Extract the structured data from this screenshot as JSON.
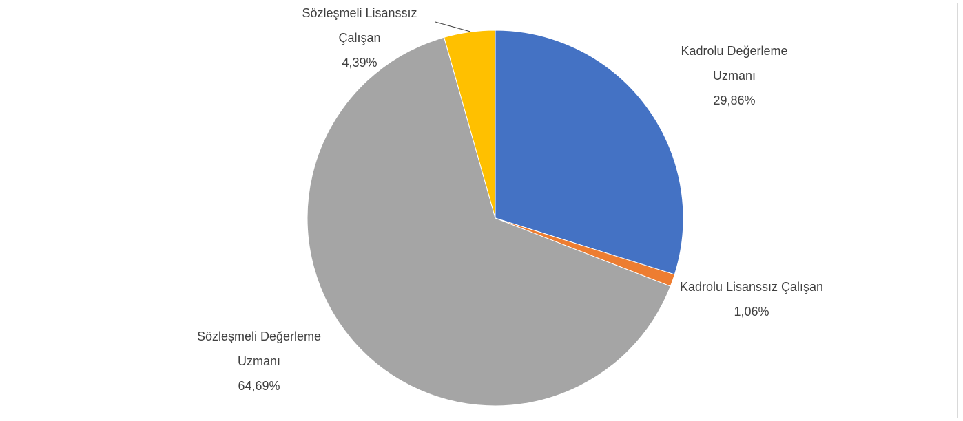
{
  "chart_data": {
    "type": "pie",
    "categories": [
      "Kadrolu Değerleme Uzmanı",
      "Kadrolu Lisanssız Çalışan",
      "Sözleşmeli Değerleme Uzmanı",
      "Sözleşmeli Lisanssız Çalışan"
    ],
    "values": [
      29.86,
      1.06,
      64.69,
      4.39
    ],
    "value_labels": [
      "29,86%",
      "1,06%",
      "64,69%",
      "4,39%"
    ],
    "colors": [
      "#4472c4",
      "#ed7d31",
      "#a5a5a5",
      "#ffc000"
    ]
  }
}
